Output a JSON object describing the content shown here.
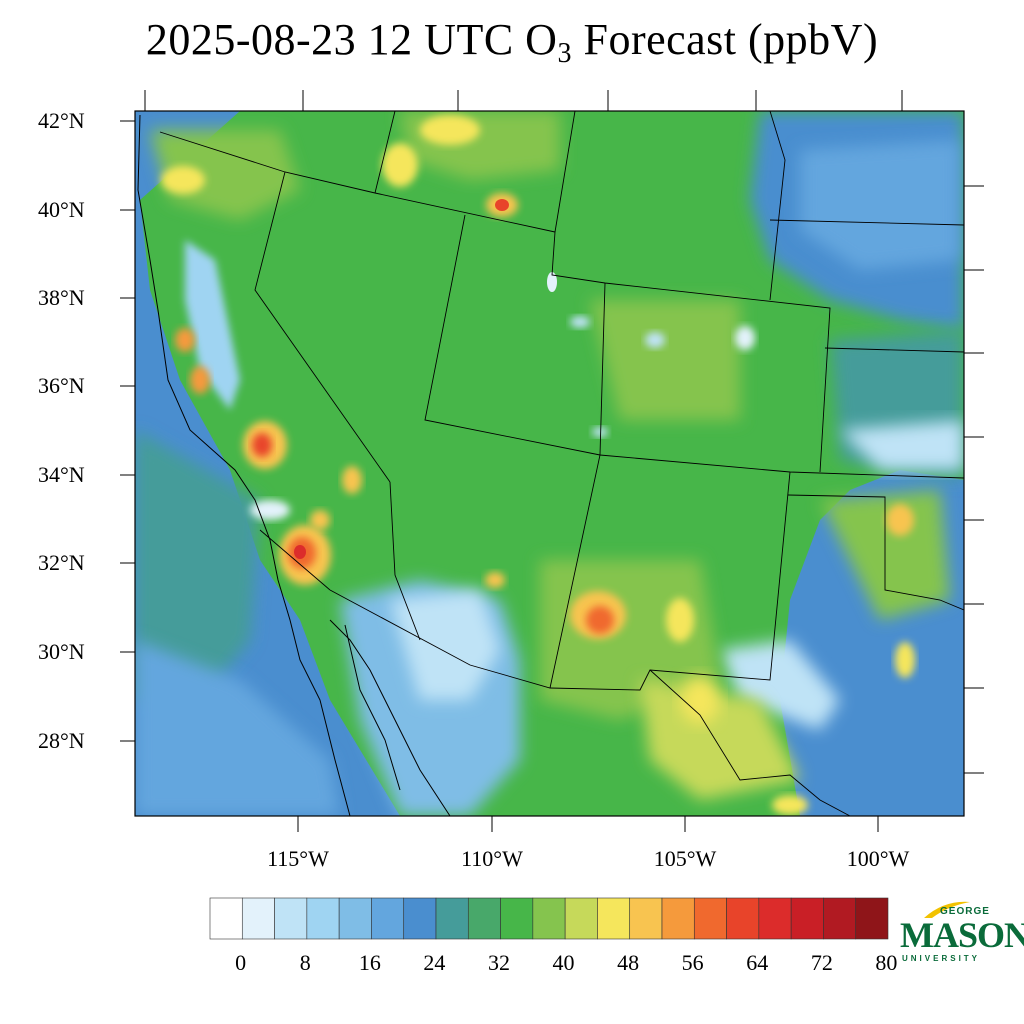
{
  "title": {
    "main": "2025-08-23 12 UTC O",
    "subscript": "3",
    "suffix": " Forecast (ppbV)"
  },
  "lat_labels": [
    "42°N",
    "40°N",
    "38°N",
    "36°N",
    "34°N",
    "32°N",
    "30°N",
    "28°N"
  ],
  "lon_labels": [
    "115°W",
    "110°W",
    "105°W",
    "100°W"
  ],
  "colorbar": {
    "tick_labels": [
      "0",
      "8",
      "16",
      "24",
      "32",
      "40",
      "48",
      "56",
      "64",
      "72",
      "80"
    ],
    "colors": [
      "#ffffff",
      "#e3f2fb",
      "#bfe3f6",
      "#9fd4f2",
      "#7fbde6",
      "#63a6de",
      "#4a8ecf",
      "#459c9a",
      "#48a86a",
      "#47b649",
      "#85c44e",
      "#c6d95a",
      "#f5e65c",
      "#f8c450",
      "#f59a3c",
      "#f0692e",
      "#e8442a",
      "#dc2c2b",
      "#c91f26",
      "#b11a22",
      "#8f1519"
    ]
  },
  "logo": {
    "george": "GEORGE",
    "mason": "MASON",
    "university": "UNIVERSITY"
  }
}
